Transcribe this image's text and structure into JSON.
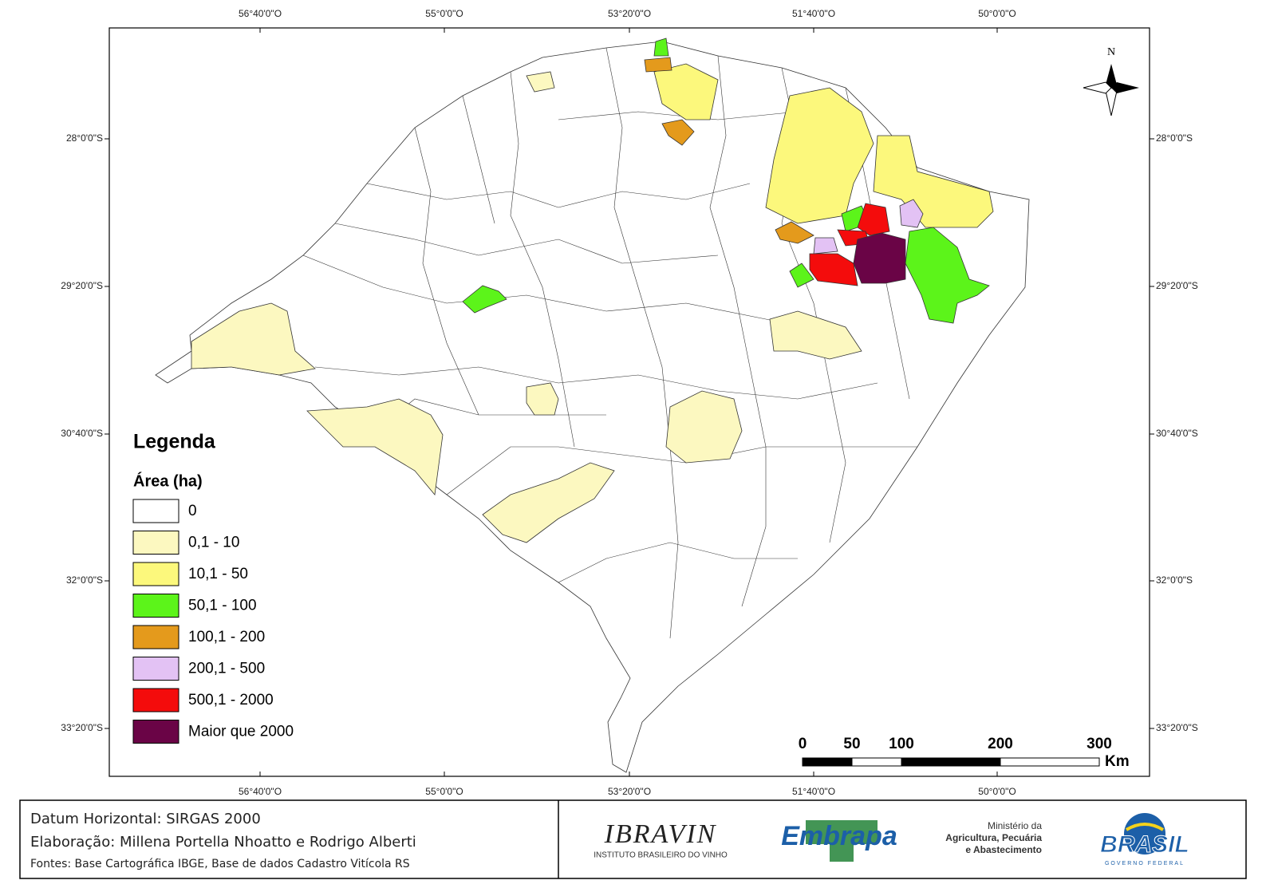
{
  "map": {
    "graticule": {
      "longitudes": [
        "56°40'0\"O",
        "55°0'0\"O",
        "53°20'0\"O",
        "51°40'0\"O",
        "50°0'0\"O"
      ],
      "latitudes": [
        "28°0'0\"S",
        "29°20'0\"S",
        "30°40'0\"S",
        "32°0'0\"S",
        "33°20'0\"S"
      ]
    },
    "north_arrow": "N",
    "legend": {
      "title": "Legenda",
      "subtitle": "Área (ha)",
      "items": [
        {
          "label": "0",
          "color": "#ffffff"
        },
        {
          "label": "0,1 - 10",
          "color": "#fcf8c0"
        },
        {
          "label": "10,1 - 50",
          "color": "#fcf87c"
        },
        {
          "label": "50,1 - 100",
          "color": "#5cf41a"
        },
        {
          "label": "100,1 - 200",
          "color": "#e49a1c"
        },
        {
          "label": "200,1 - 500",
          "color": "#e3c2f4"
        },
        {
          "label": "500,1 - 2000",
          "color": "#f40c0c"
        },
        {
          "label": "Maior que 2000",
          "color": "#6a0446"
        }
      ]
    },
    "scale_bar": {
      "labels": [
        "0",
        "50",
        "100",
        "200",
        "300"
      ],
      "unit": "Km"
    }
  },
  "footer": {
    "datum": "Datum Horizontal: SIRGAS 2000",
    "authors": "Elaboração: Millena Portella Nhoatto e Rodrigo Alberti",
    "sources": "Fontes: Base Cartográfica IBGE, Base de dados Cadastro Vitícola RS",
    "logos": {
      "ibravin": "IBRAVIN",
      "ibravin_sub": "INSTITUTO BRASILEIRO DO VINHO",
      "embrapa": "Embrapa",
      "ministry": [
        "Ministério da",
        "Agricultura, Pecuária",
        "e Abastecimento"
      ],
      "brasil": "BRASIL",
      "brasil_sub": "GOVERNO FEDERAL"
    }
  }
}
